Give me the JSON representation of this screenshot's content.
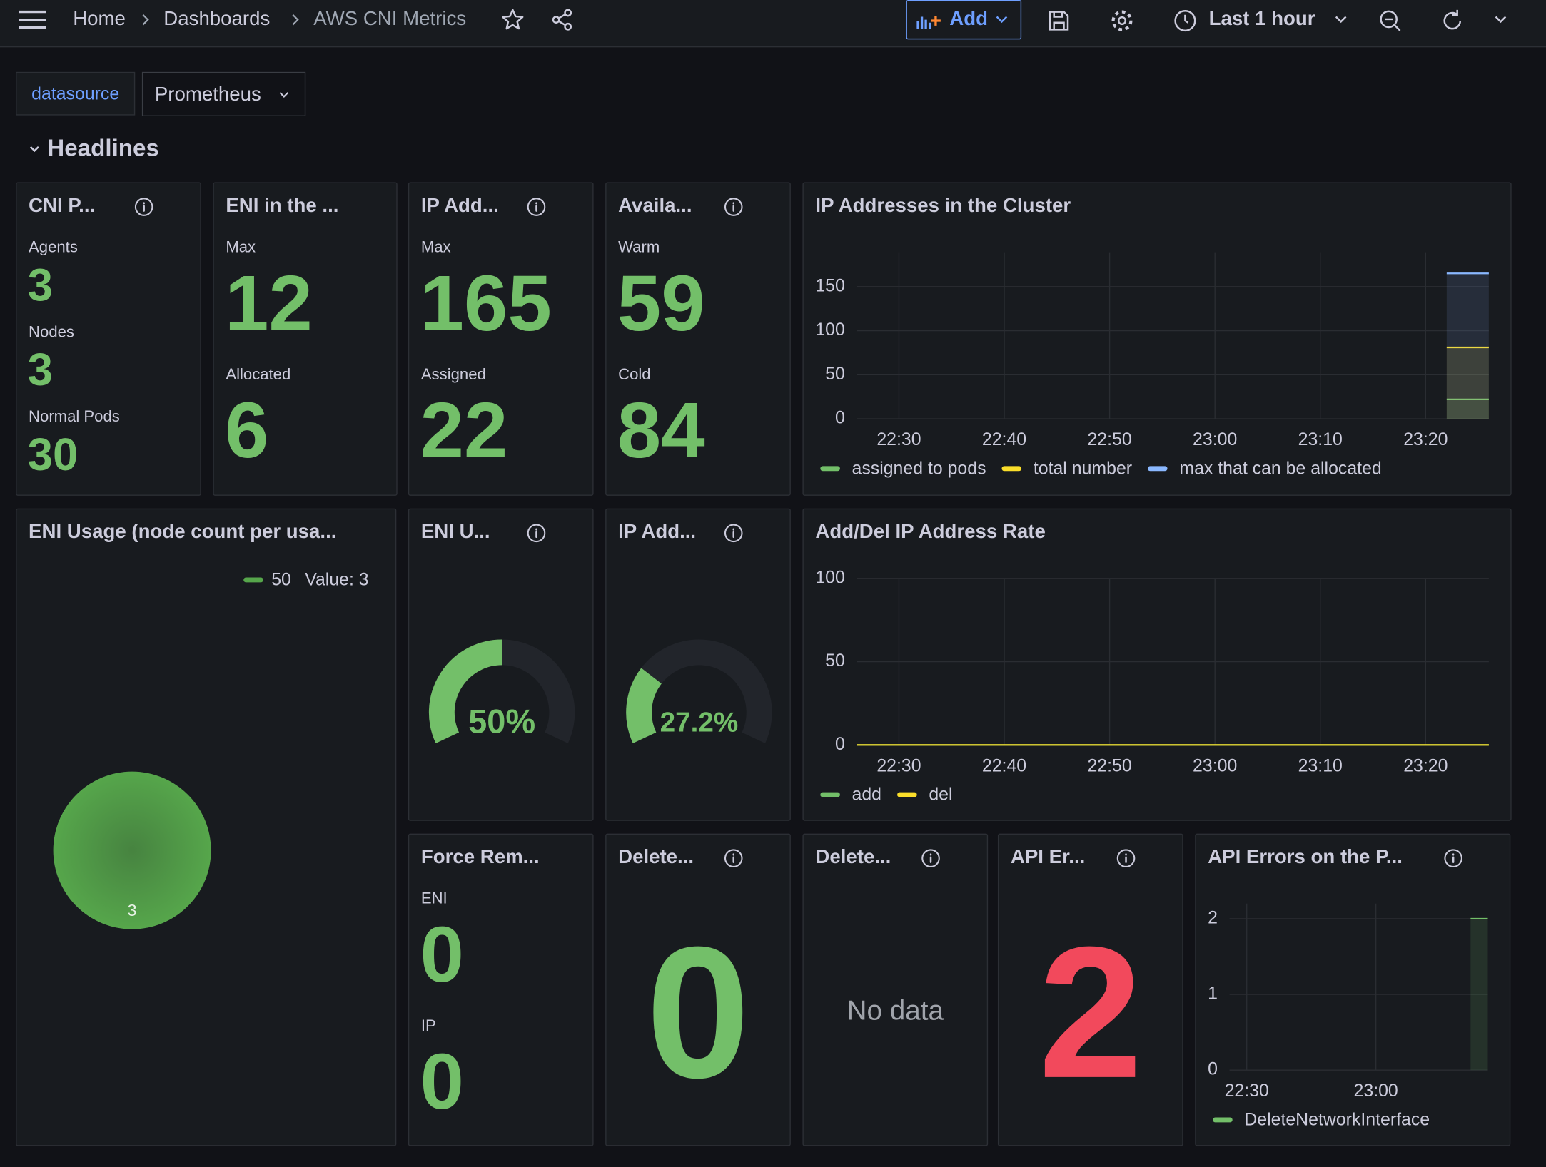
{
  "topbar": {
    "breadcrumbs": [
      "Home",
      "Dashboards",
      "AWS CNI Metrics"
    ],
    "add": "Add",
    "time_range": "Last 1 hour"
  },
  "variables": {
    "label": "datasource",
    "value": "Prometheus"
  },
  "row": "Headlines",
  "panels": [
    {
      "type": "stat",
      "title": "CNI P...",
      "info": true,
      "color": "#73bf69",
      "items": [
        {
          "label": "Agents",
          "value": 3
        },
        {
          "label": "Nodes",
          "value": 3
        },
        {
          "label": "Normal Pods",
          "value": 30
        }
      ]
    },
    {
      "type": "stat",
      "title": "ENI in the ...",
      "info": false,
      "color": "#73bf69",
      "items": [
        {
          "label": "Max",
          "value": 12
        },
        {
          "label": "Allocated",
          "value": 6
        }
      ]
    },
    {
      "type": "stat",
      "title": "IP Add...",
      "info": true,
      "color": "#73bf69",
      "items": [
        {
          "label": "Max",
          "value": 165
        },
        {
          "label": "Assigned",
          "value": 22
        }
      ]
    },
    {
      "type": "stat",
      "title": "Availa...",
      "info": true,
      "color": "#73bf69",
      "items": [
        {
          "label": "Warm",
          "value": 59
        },
        {
          "label": "Cold",
          "value": 84
        }
      ]
    },
    {
      "type": "timeseries",
      "title": "IP Addresses in the Cluster",
      "info": false,
      "style": "area",
      "xlim": [
        "22:26",
        "23:26"
      ],
      "xticks": [
        "22:30",
        "22:40",
        "22:50",
        "23:00",
        "23:10",
        "23:20"
      ],
      "ylim": [
        0,
        189
      ],
      "yticks": [
        0,
        50,
        100,
        150
      ],
      "grid": true,
      "series": [
        {
          "name": "assigned to pods",
          "color": "#73bf69",
          "x": [
            "23:22",
            "23:26"
          ],
          "values": [
            22,
            22
          ]
        },
        {
          "name": "total number",
          "color": "#fade2a",
          "x": [
            "23:22",
            "23:26"
          ],
          "values": [
            81,
            81
          ]
        },
        {
          "name": "max that can be allocated",
          "color": "#8ab8ff",
          "x": [
            "23:22",
            "23:26"
          ],
          "values": [
            165,
            165
          ]
        }
      ]
    },
    {
      "type": "bubble",
      "title": "ENI Usage (node count per usa...",
      "info": false,
      "color": "#56a64b",
      "legend": {
        "name": "50",
        "label": "Value: 3"
      },
      "values": [
        3
      ]
    },
    {
      "type": "gauge",
      "title": "ENI U...",
      "info": true,
      "color": "#73bf69",
      "ylim": [
        0,
        100
      ],
      "value": 50,
      "value_label": "50%"
    },
    {
      "type": "gauge",
      "title": "IP Add...",
      "info": true,
      "color": "#73bf69",
      "ylim": [
        0,
        100
      ],
      "value": 27.2,
      "value_label": "27.2%"
    },
    {
      "type": "timeseries",
      "title": "Add/Del IP Address Rate",
      "info": false,
      "style": "line",
      "xlim": [
        "22:26",
        "23:26"
      ],
      "xticks": [
        "22:30",
        "22:40",
        "22:50",
        "23:00",
        "23:10",
        "23:20"
      ],
      "ylim": [
        0,
        100
      ],
      "yticks": [
        0,
        50,
        100
      ],
      "grid": true,
      "series": [
        {
          "name": "add",
          "color": "#73bf69",
          "x": [
            "22:26",
            "23:26"
          ],
          "values": [
            0,
            0
          ]
        },
        {
          "name": "del",
          "color": "#fade2a",
          "x": [
            "22:26",
            "23:26"
          ],
          "values": [
            0,
            0
          ]
        }
      ]
    },
    {
      "type": "stat",
      "title": "Force Rem...",
      "info": false,
      "color": "#73bf69",
      "items": [
        {
          "label": "ENI",
          "value": 0
        },
        {
          "label": "IP",
          "value": 0
        }
      ]
    },
    {
      "type": "stat",
      "title": "Delete...",
      "info": true,
      "color": "#73bf69",
      "value": 0
    },
    {
      "type": "nodata",
      "title": "Delete...",
      "info": true,
      "message": "No data"
    },
    {
      "type": "stat",
      "title": "API Er...",
      "info": true,
      "color": "#f2495c",
      "value": 2
    },
    {
      "type": "timeseries",
      "title": "API Errors on the P...",
      "info": true,
      "style": "bars",
      "xlim": [
        "22:26",
        "23:26"
      ],
      "xticks": [
        "22:30",
        "23:00"
      ],
      "ylim": [
        0,
        2.2
      ],
      "yticks": [
        0,
        1,
        2
      ],
      "grid": true,
      "series": [
        {
          "name": "DeleteNetworkInterface",
          "color": "#73bf69",
          "x": [
            "23:22",
            "23:26"
          ],
          "values": [
            2,
            2
          ]
        }
      ]
    }
  ]
}
